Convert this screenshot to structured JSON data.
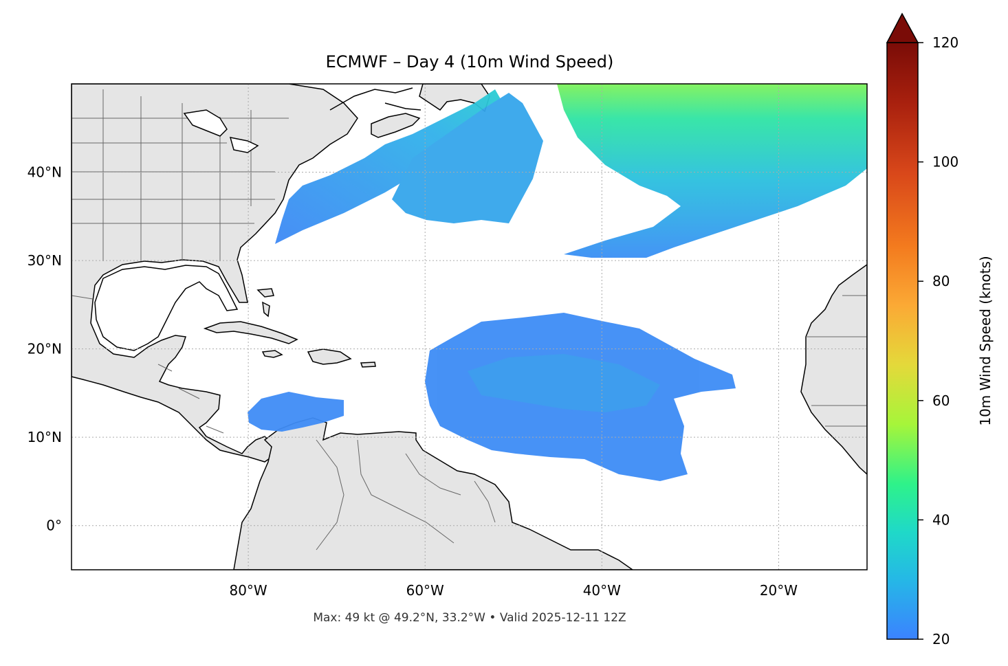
{
  "title": "ECMWF – Day 4 (10m Wind Speed)",
  "footer": "Max: 49 kt @ 49.2°N, 33.2°W • Valid 2025-12-11 12Z",
  "map": {
    "projection": "PlateCarree",
    "extent": {
      "lon_min": -100,
      "lon_max": -10,
      "lat_min": -5,
      "lat_max": 50
    },
    "land_color": "#e5e5e5",
    "coast_color": "#000000",
    "border_color": "#666666",
    "gridlines": true,
    "lon_ticks": [
      {
        "value": -80,
        "label": "80°W"
      },
      {
        "value": -60,
        "label": "60°W"
      },
      {
        "value": -40,
        "label": "40°W"
      },
      {
        "value": -20,
        "label": "20°W"
      }
    ],
    "lat_ticks": [
      {
        "value": 40,
        "label": "40°N"
      },
      {
        "value": 30,
        "label": "30°N"
      },
      {
        "value": 20,
        "label": "20°N"
      },
      {
        "value": 10,
        "label": "10°N"
      },
      {
        "value": 0,
        "label": "0°"
      }
    ]
  },
  "colorbar": {
    "label": "10m Wind Speed (knots)",
    "min": 20,
    "max": 120,
    "extend": "max",
    "colormap": "turbo",
    "ticks": [
      {
        "value": 120,
        "label": "120"
      },
      {
        "value": 100,
        "label": "100"
      },
      {
        "value": 80,
        "label": "80"
      },
      {
        "value": 60,
        "label": "60"
      },
      {
        "value": 40,
        "label": "40"
      },
      {
        "value": 20,
        "label": "20"
      }
    ],
    "stops": [
      "#3b82ff",
      "#25b8e6",
      "#1fd9c8",
      "#2ef28a",
      "#a6f53a",
      "#e4d93a",
      "#fba935",
      "#f37a1e",
      "#d9481a",
      "#a8200e",
      "#6d0a06"
    ]
  },
  "wind_regions": [
    {
      "name": "northwest-atlantic",
      "color": "#3f8cf5"
    },
    {
      "name": "north-central-atlantic",
      "color": "#3aa8f0"
    },
    {
      "name": "tropical-atlantic",
      "color": "#3d8cf5"
    },
    {
      "name": "caribbean-south",
      "color": "#3f8cf5"
    },
    {
      "name": "northeast-atlantic-max",
      "color": "#5be870"
    }
  ]
}
